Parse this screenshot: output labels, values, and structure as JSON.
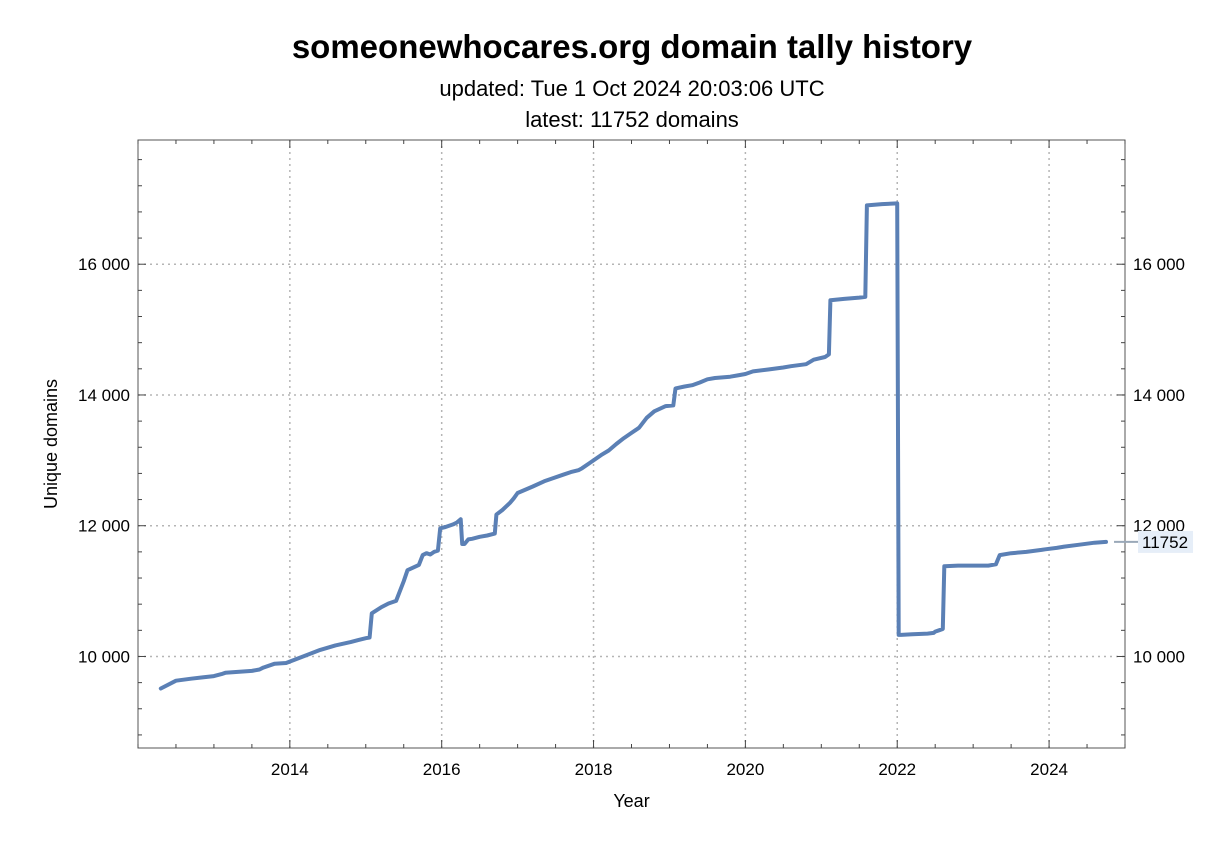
{
  "chart_data": {
    "type": "line",
    "title": "someonewhocares.org domain tally history",
    "subtitle_updated": "updated: Tue 1 Oct 2024 20:03:06 UTC",
    "subtitle_latest": "latest: 11752 domains",
    "xlabel": "Year",
    "ylabel": "Unique domains",
    "xlim": [
      2012.0,
      2025.0
    ],
    "ylim": [
      8600,
      17900
    ],
    "x_ticks": [
      2014,
      2016,
      2018,
      2020,
      2022,
      2024
    ],
    "y_ticks": [
      10000,
      12000,
      14000,
      16000
    ],
    "x_tick_labels": [
      "2014",
      "2016",
      "2018",
      "2020",
      "2022",
      "2024"
    ],
    "y_tick_labels": [
      "10 000",
      "12 000",
      "14 000",
      "16 000"
    ],
    "grid": true,
    "line_color": "#5b80b5",
    "end_label": "11752",
    "series": [
      {
        "x": [
          2012.3,
          2012.5,
          2012.7,
          2012.85,
          2013.0,
          2013.1,
          2013.15,
          2013.5,
          2013.6,
          2013.65,
          2013.8,
          2013.95,
          2014.2,
          2014.4,
          2014.6,
          2014.8,
          2014.9,
          2015.0,
          2015.05,
          2015.08,
          2015.2,
          2015.3,
          2015.4,
          2015.5,
          2015.55,
          2015.7,
          2015.75,
          2015.8,
          2015.85,
          2015.9,
          2015.95,
          2015.98,
          2016.05,
          2016.15,
          2016.2,
          2016.25,
          2016.27,
          2016.3,
          2016.35,
          2016.4,
          2016.5,
          2016.6,
          2016.7,
          2016.72,
          2016.8,
          2016.9,
          2016.95,
          2017.0,
          2017.2,
          2017.35,
          2017.45,
          2017.6,
          2017.7,
          2017.8,
          2017.85,
          2017.95,
          2018.1,
          2018.2,
          2018.3,
          2018.4,
          2018.5,
          2018.55,
          2018.6,
          2018.7,
          2018.8,
          2018.95,
          2019.05,
          2019.08,
          2019.2,
          2019.3,
          2019.4,
          2019.5,
          2019.6,
          2019.8,
          2019.9,
          2020.0,
          2020.1,
          2020.3,
          2020.5,
          2020.6,
          2020.8,
          2020.9,
          2021.05,
          2021.1,
          2021.12,
          2021.3,
          2021.5,
          2021.58,
          2021.6,
          2021.7,
          2021.8,
          2022.0,
          2022.02,
          2022.05,
          2022.2,
          2022.4,
          2022.48,
          2022.5,
          2022.55,
          2022.6,
          2022.62,
          2022.8,
          2023.0,
          2023.2,
          2023.3,
          2023.35,
          2023.5,
          2023.7,
          2023.9,
          2023.95,
          2024.1,
          2024.2,
          2024.4,
          2024.6,
          2024.75
        ],
        "y": [
          9510,
          9630,
          9660,
          9680,
          9700,
          9730,
          9750,
          9780,
          9800,
          9830,
          9890,
          9900,
          10010,
          10100,
          10170,
          10220,
          10250,
          10280,
          10290,
          10660,
          10750,
          10810,
          10850,
          11150,
          11320,
          11400,
          11550,
          11580,
          11560,
          11600,
          11620,
          11960,
          11980,
          12020,
          12050,
          12100,
          11720,
          11720,
          11790,
          11800,
          11830,
          11850,
          11880,
          12170,
          12240,
          12350,
          12420,
          12500,
          12600,
          12680,
          12720,
          12780,
          12820,
          12850,
          12880,
          12960,
          13080,
          13150,
          13250,
          13340,
          13420,
          13460,
          13500,
          13650,
          13750,
          13830,
          13840,
          14100,
          14130,
          14150,
          14190,
          14240,
          14260,
          14280,
          14300,
          14320,
          14360,
          14390,
          14420,
          14440,
          14470,
          14540,
          14580,
          14620,
          15450,
          15470,
          15490,
          15500,
          16900,
          16910,
          16920,
          16930,
          10330,
          10330,
          10340,
          10350,
          10360,
          10380,
          10400,
          10420,
          11380,
          11390,
          11390,
          11390,
          11410,
          11550,
          11580,
          11600,
          11630,
          11640,
          11660,
          11680,
          11710,
          11740,
          11752
        ]
      }
    ]
  }
}
